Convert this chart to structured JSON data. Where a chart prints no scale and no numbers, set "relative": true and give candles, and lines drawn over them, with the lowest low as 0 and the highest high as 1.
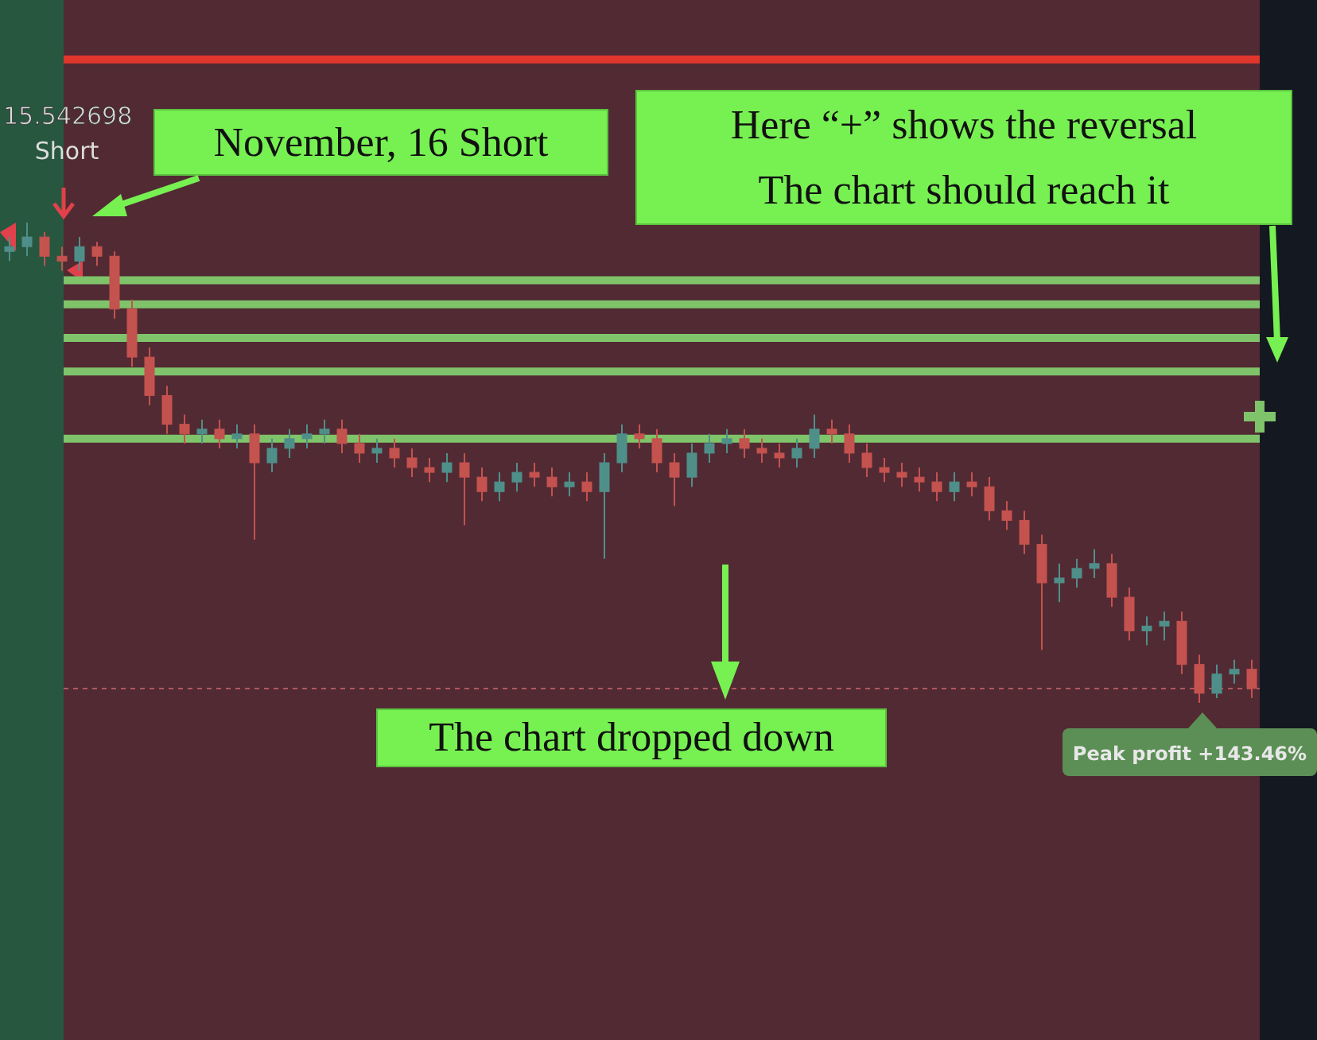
{
  "chart_data": {
    "type": "candlestick",
    "relative": true,
    "categories": [
      null,
      null,
      null,
      null,
      null,
      null,
      null,
      null,
      null,
      null,
      null,
      null,
      null,
      null,
      null,
      null,
      null,
      null,
      null,
      null,
      null,
      null,
      null,
      null,
      null,
      null,
      null,
      null,
      null,
      null,
      null,
      null,
      null,
      null,
      null,
      null,
      null,
      null,
      null,
      null,
      null,
      null,
      null,
      null,
      null,
      null,
      null,
      null,
      null,
      null,
      null,
      null,
      null,
      null,
      null,
      null,
      null,
      null,
      null,
      null,
      null,
      null,
      null,
      null,
      null,
      null,
      null,
      null,
      null,
      null,
      null,
      null
    ],
    "series": [
      {
        "ohlc": [
          [
            0.94,
            0.97,
            0.92,
            0.95
          ],
          [
            0.95,
            1.0,
            0.93,
            0.97
          ],
          [
            0.97,
            0.98,
            0.91,
            0.93
          ],
          [
            0.93,
            0.95,
            0.9,
            0.92
          ],
          [
            0.92,
            0.97,
            0.9,
            0.95
          ],
          [
            0.95,
            0.96,
            0.91,
            0.93
          ],
          [
            0.93,
            0.94,
            0.8,
            0.82
          ],
          [
            0.82,
            0.84,
            0.7,
            0.72
          ],
          [
            0.72,
            0.74,
            0.62,
            0.64
          ],
          [
            0.64,
            0.66,
            0.56,
            0.58
          ],
          [
            0.58,
            0.6,
            0.54,
            0.56
          ],
          [
            0.56,
            0.59,
            0.54,
            0.57
          ],
          [
            0.57,
            0.59,
            0.53,
            0.55
          ],
          [
            0.55,
            0.58,
            0.53,
            0.56
          ],
          [
            0.56,
            0.58,
            0.34,
            0.5
          ],
          [
            0.5,
            0.55,
            0.48,
            0.53
          ],
          [
            0.53,
            0.57,
            0.51,
            0.55
          ],
          [
            0.55,
            0.58,
            0.53,
            0.56
          ],
          [
            0.56,
            0.59,
            0.54,
            0.57
          ],
          [
            0.57,
            0.59,
            0.52,
            0.54
          ],
          [
            0.54,
            0.56,
            0.5,
            0.52
          ],
          [
            0.52,
            0.55,
            0.5,
            0.53
          ],
          [
            0.53,
            0.55,
            0.49,
            0.51
          ],
          [
            0.51,
            0.53,
            0.47,
            0.49
          ],
          [
            0.49,
            0.51,
            0.46,
            0.48
          ],
          [
            0.48,
            0.52,
            0.46,
            0.5
          ],
          [
            0.5,
            0.52,
            0.37,
            0.47
          ],
          [
            0.47,
            0.49,
            0.42,
            0.44
          ],
          [
            0.44,
            0.48,
            0.42,
            0.46
          ],
          [
            0.46,
            0.5,
            0.44,
            0.48
          ],
          [
            0.48,
            0.5,
            0.45,
            0.47
          ],
          [
            0.47,
            0.49,
            0.43,
            0.45
          ],
          [
            0.45,
            0.48,
            0.43,
            0.46
          ],
          [
            0.46,
            0.48,
            0.42,
            0.44
          ],
          [
            0.44,
            0.52,
            0.3,
            0.5
          ],
          [
            0.5,
            0.58,
            0.48,
            0.56
          ],
          [
            0.56,
            0.58,
            0.53,
            0.55
          ],
          [
            0.55,
            0.57,
            0.48,
            0.5
          ],
          [
            0.5,
            0.52,
            0.41,
            0.47
          ],
          [
            0.47,
            0.54,
            0.45,
            0.52
          ],
          [
            0.52,
            0.56,
            0.5,
            0.54
          ],
          [
            0.54,
            0.57,
            0.52,
            0.55
          ],
          [
            0.55,
            0.57,
            0.51,
            0.53
          ],
          [
            0.53,
            0.55,
            0.5,
            0.52
          ],
          [
            0.52,
            0.54,
            0.49,
            0.51
          ],
          [
            0.51,
            0.55,
            0.49,
            0.53
          ],
          [
            0.53,
            0.6,
            0.51,
            0.57
          ],
          [
            0.57,
            0.59,
            0.54,
            0.56
          ],
          [
            0.56,
            0.58,
            0.5,
            0.52
          ],
          [
            0.52,
            0.54,
            0.47,
            0.49
          ],
          [
            0.49,
            0.51,
            0.46,
            0.48
          ],
          [
            0.48,
            0.5,
            0.45,
            0.47
          ],
          [
            0.47,
            0.49,
            0.44,
            0.46
          ],
          [
            0.46,
            0.48,
            0.42,
            0.44
          ],
          [
            0.44,
            0.48,
            0.42,
            0.46
          ],
          [
            0.46,
            0.48,
            0.43,
            0.45
          ],
          [
            0.45,
            0.47,
            0.38,
            0.4
          ],
          [
            0.4,
            0.42,
            0.36,
            0.38
          ],
          [
            0.38,
            0.4,
            0.31,
            0.33
          ],
          [
            0.33,
            0.35,
            0.11,
            0.25
          ],
          [
            0.25,
            0.29,
            0.21,
            0.26
          ],
          [
            0.26,
            0.3,
            0.24,
            0.28
          ],
          [
            0.28,
            0.32,
            0.26,
            0.29
          ],
          [
            0.29,
            0.31,
            0.2,
            0.22
          ],
          [
            0.22,
            0.24,
            0.13,
            0.15
          ],
          [
            0.15,
            0.18,
            0.12,
            0.16
          ],
          [
            0.16,
            0.19,
            0.13,
            0.17
          ],
          [
            0.17,
            0.19,
            0.06,
            0.08
          ],
          [
            0.08,
            0.1,
            0.0,
            0.02
          ],
          [
            0.02,
            0.08,
            0.01,
            0.06
          ],
          [
            0.06,
            0.09,
            0.04,
            0.07
          ],
          [
            0.07,
            0.09,
            0.01,
            0.03
          ]
        ]
      }
    ],
    "ref_lines": [
      {
        "axis": "y",
        "value": 1.34,
        "color": "#e0362c",
        "line_style": "solid"
      },
      {
        "axis": "y",
        "value": 0.88,
        "color": "#7fc36a",
        "line_style": "solid"
      },
      {
        "axis": "y",
        "value": 0.83,
        "color": "#7fc36a",
        "line_style": "solid"
      },
      {
        "axis": "y",
        "value": 0.76,
        "color": "#7fc36a",
        "line_style": "solid"
      },
      {
        "axis": "y",
        "value": 0.69,
        "color": "#7fc36a",
        "line_style": "solid"
      },
      {
        "axis": "y",
        "value": 0.55,
        "color": "#7fc36a",
        "line_style": "solid"
      },
      {
        "axis": "y",
        "value": 0.03,
        "color": "#b0585e",
        "line_style": "dashed"
      }
    ],
    "annotations": [
      "15.542698",
      "Short",
      "November, 16 Short",
      "Here “+” shows the reversal",
      "The chart should reach it",
      "The chart dropped down",
      "Peak profit +143.46%"
    ]
  }
}
